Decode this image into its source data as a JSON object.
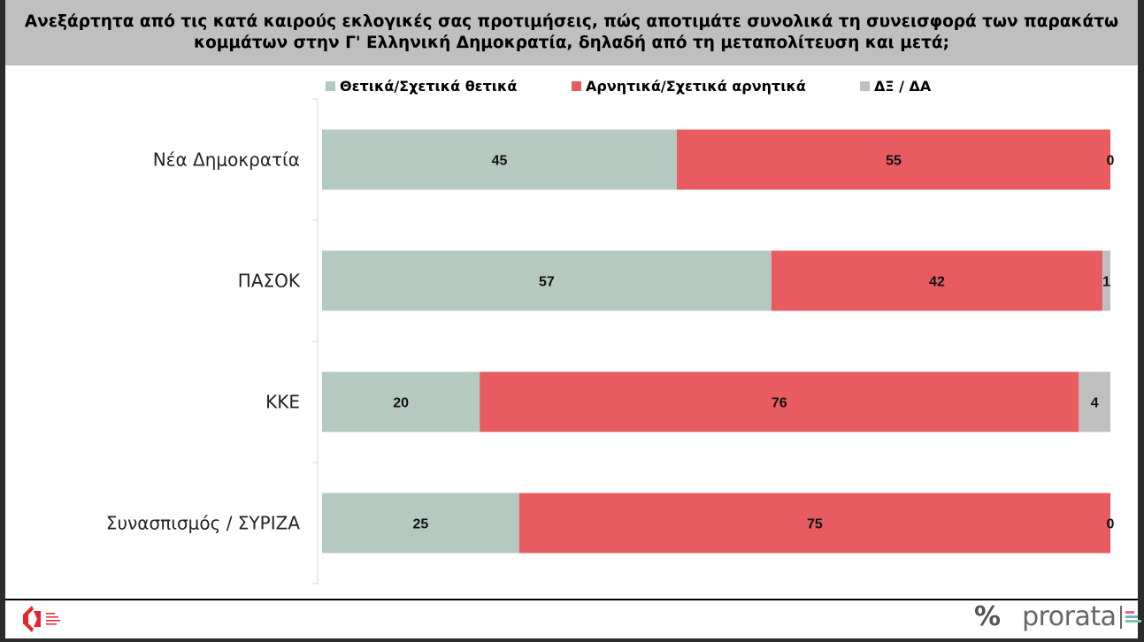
{
  "chart_data": {
    "type": "bar",
    "orientation": "horizontal",
    "stacked": true,
    "title": "Ανεξάρτητα από τις κατά καιρούς εκλογικές σας προτιμήσεις, πώς αποτιμάτε συνολικά τη συνεισφορά των παρακάτω κομμάτων στην Γ' Ελληνική Δημοκρατία, δηλαδή από τη μεταπολίτευση και μετά;",
    "categories": [
      "Νέα Δημοκρατία",
      "ΠΑΣΟΚ",
      "ΚΚΕ",
      "Συνασπισμός / ΣΥΡΙΖΑ"
    ],
    "series": [
      {
        "name": "Θετικά/Σχετικά θετικά",
        "values": [
          45,
          57,
          20,
          25
        ],
        "color": "#b4c9c0"
      },
      {
        "name": "Αρνητικά/Σχετικά αρνητικά",
        "values": [
          55,
          42,
          76,
          75
        ],
        "color": "#e85c61"
      },
      {
        "name": "ΔΞ / ΔΑ",
        "values": [
          0,
          1,
          4,
          0
        ],
        "color": "#bfbfbf"
      }
    ],
    "xlim": [
      0,
      100
    ],
    "legend": "top",
    "grid": false
  },
  "footer": {
    "brand": "prorata"
  }
}
